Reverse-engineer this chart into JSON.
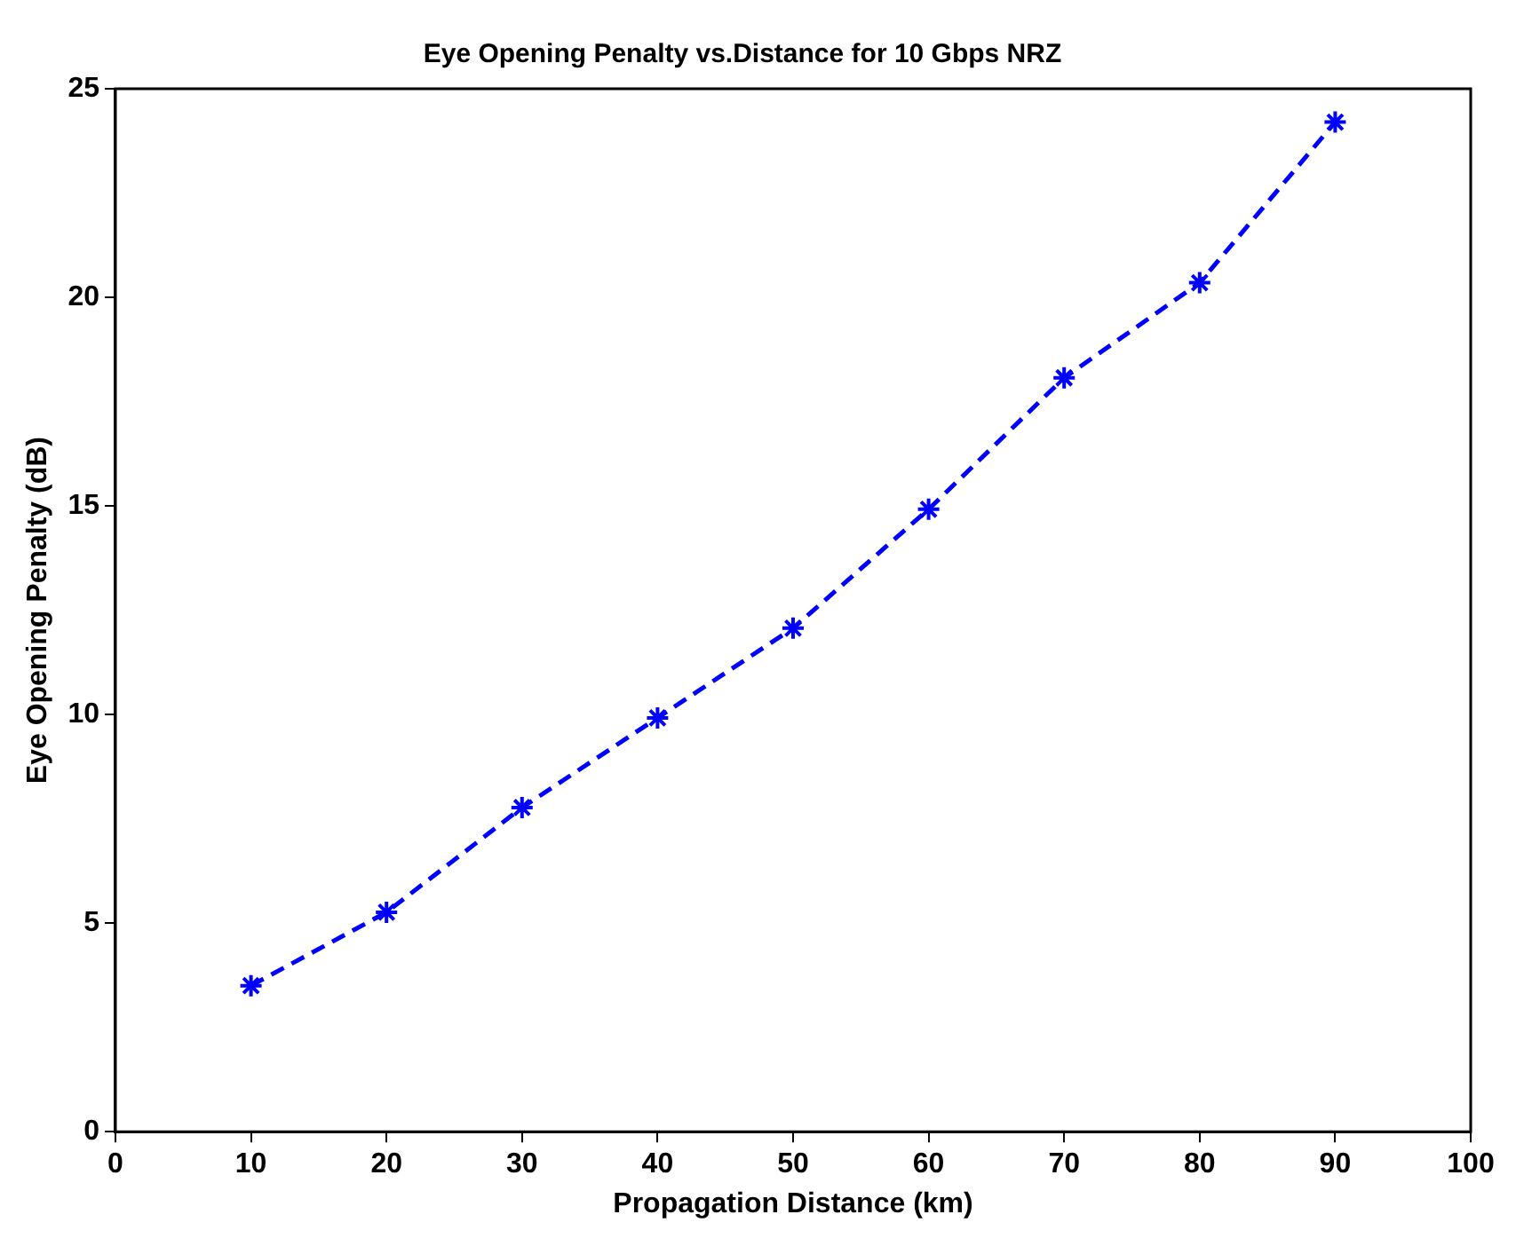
{
  "chart_data": {
    "type": "line",
    "title": "Eye Opening Penalty vs.Distance for 10 Gbps NRZ",
    "xlabel": "Propagation Distance (km)",
    "ylabel": "Eye Opening Penalty (dB)",
    "x": [
      10,
      20,
      30,
      40,
      50,
      60,
      70,
      80,
      90
    ],
    "series": [
      {
        "color": "#0000ff",
        "values": [
          3.5,
          5.26,
          7.77,
          9.92,
          12.07,
          14.92,
          18.07,
          20.35,
          24.2
        ]
      }
    ],
    "xlim": [
      0,
      100
    ],
    "xticks": [
      0,
      10,
      20,
      30,
      40,
      50,
      60,
      70,
      80,
      90,
      100
    ],
    "ylim": [
      0,
      25
    ],
    "yticks": [
      0,
      5,
      10,
      15,
      20,
      25
    ],
    "grid": false,
    "legend": false,
    "marker": "cross",
    "line_style": "dashed"
  }
}
